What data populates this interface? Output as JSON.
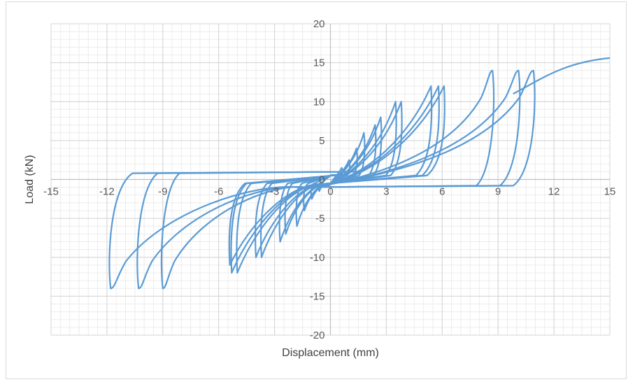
{
  "chart_data": {
    "type": "line",
    "title": "",
    "xlabel": "Displacement (mm)",
    "ylabel": "Load (kN)",
    "xlim": [
      -15,
      15
    ],
    "ylim": [
      -20,
      20
    ],
    "x_ticks": [
      -15,
      -12,
      -9,
      -6,
      -3,
      0,
      3,
      6,
      9,
      12,
      15
    ],
    "y_ticks": [
      -20,
      -15,
      -10,
      -5,
      0,
      5,
      10,
      15,
      20
    ],
    "x_tick_labels": [
      "-15",
      "-12",
      "-9",
      "-6",
      "-3",
      "0",
      "3",
      "6",
      "9",
      "12",
      "15"
    ],
    "y_tick_labels": [
      "-20",
      "-15",
      "-10",
      "-5",
      "0",
      "5",
      "10",
      "15",
      "20"
    ],
    "grid": true,
    "minor_grid": true,
    "legend": "none",
    "line_color": "#5b9bd5",
    "series": [
      {
        "values_description": "hysteresis loops",
        "cycles": [
          {
            "peak_pos": [
              0.6,
              1.5
            ],
            "peak_neg": [
              -0.6,
              -1.5
            ]
          },
          {
            "peak_pos": [
              1.0,
              2.5
            ],
            "peak_neg": [
              -1.0,
              -2.5
            ]
          },
          {
            "peak_pos": [
              1.4,
              4.0
            ],
            "peak_neg": [
              -1.4,
              -4.0
            ]
          },
          {
            "peak_pos": [
              1.8,
              6.0
            ],
            "peak_neg": [
              -1.8,
              -6.0
            ]
          },
          {
            "peak_pos": [
              2.4,
              7.0
            ],
            "peak_neg": [
              -2.4,
              -7.0
            ]
          },
          {
            "peak_pos": [
              2.7,
              8.0
            ],
            "peak_neg": [
              -2.7,
              -8.0
            ]
          },
          {
            "peak_pos": [
              3.5,
              10.0
            ],
            "peak_neg": [
              -3.7,
              -10.0
            ]
          },
          {
            "peak_pos": [
              3.8,
              10.0
            ],
            "peak_neg": [
              -4.0,
              -10.0
            ]
          },
          {
            "peak_pos": [
              5.4,
              12.0
            ],
            "peak_neg": [
              -5.3,
              -12.0
            ]
          },
          {
            "peak_pos": [
              5.8,
              12.0
            ],
            "peak_neg": [
              -5.4,
              -11.0
            ]
          },
          {
            "peak_pos": [
              6.1,
              12.0
            ],
            "peak_neg": [
              -5.0,
              -12.0
            ]
          },
          {
            "peak_pos": [
              8.7,
              14.0
            ],
            "peak_neg": [
              -9.0,
              -14.0
            ]
          },
          {
            "peak_pos": [
              10.1,
              14.0
            ],
            "peak_neg": [
              -10.3,
              -14.0
            ]
          },
          {
            "peak_pos": [
              10.9,
              14.0
            ],
            "peak_neg": [
              -11.8,
              -14.0
            ]
          }
        ],
        "final_point": [
          15.0,
          15.6
        ]
      }
    ]
  }
}
